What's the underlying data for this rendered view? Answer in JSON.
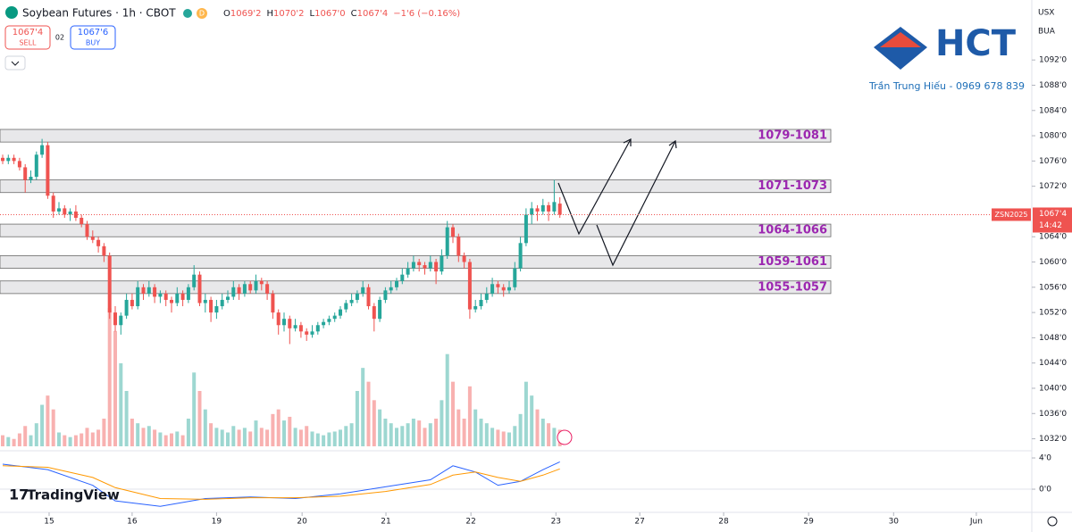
{
  "ui": {
    "symbol": "Soybean Futures · 1h · CBOT",
    "badge": "D",
    "ohlc": [
      {
        "key": "O",
        "value": "1069'2"
      },
      {
        "key": "H",
        "value": "1070'2"
      },
      {
        "key": "L",
        "value": "1067'0"
      },
      {
        "key": "C",
        "value": "1067'4"
      }
    ],
    "change": "−1'6 (−0.16%)",
    "sell": {
      "price": "1067'4",
      "label": "SELL"
    },
    "spread": "02",
    "buy": {
      "price": "1067'6",
      "label": "BUY"
    },
    "currency": "USX",
    "account": "BUA",
    "logo": "HCT",
    "author": "Trần Trung Hiếu - 0969 678 839",
    "brand": "TradingView",
    "ticker": "ZSN2025",
    "countdown": "14:42"
  },
  "chart_data": {
    "type": "candlestick",
    "up_color": "#26a69a",
    "down_color": "#ef5350",
    "grid": false,
    "ylim": [
      1030.1,
      1101.5
    ],
    "yticks": [
      {
        "value": 1032,
        "label": "1032'0"
      },
      {
        "value": 1036,
        "label": "1036'0"
      },
      {
        "value": 1040,
        "label": "1040'0"
      },
      {
        "value": 1044,
        "label": "1044'0"
      },
      {
        "value": 1048,
        "label": "1048'0"
      },
      {
        "value": 1052,
        "label": "1052'0"
      },
      {
        "value": 1056,
        "label": "1056'0"
      },
      {
        "value": 1060,
        "label": "1060'0"
      },
      {
        "value": 1064,
        "label": "1064'0"
      },
      {
        "value": 1072,
        "label": "1072'0"
      },
      {
        "value": 1076,
        "label": "1076'0"
      },
      {
        "value": 1080,
        "label": "1080'0"
      },
      {
        "value": 1084,
        "label": "1084'0"
      },
      {
        "value": 1088,
        "label": "1088'0"
      },
      {
        "value": 1092,
        "label": "1092'0"
      }
    ],
    "xticks": [
      {
        "value": 8.25,
        "label": "15"
      },
      {
        "value": 23,
        "label": "16"
      },
      {
        "value": 38,
        "label": "19"
      },
      {
        "value": 53.2,
        "label": "20"
      },
      {
        "value": 68.1,
        "label": "21"
      },
      {
        "value": 83.2,
        "label": "22"
      },
      {
        "value": 98.3,
        "label": "23"
      },
      {
        "value": 113.2,
        "label": "27"
      },
      {
        "value": 128.1,
        "label": "28"
      },
      {
        "value": 143.2,
        "label": "29"
      },
      {
        "value": 158.3,
        "label": "30"
      },
      {
        "value": 173,
        "label": "Jun"
      }
    ],
    "last_price": {
      "value": 1067.5,
      "label": "1067'4"
    },
    "zones": [
      {
        "low": 1079,
        "high": 1081,
        "label": "1079-1081"
      },
      {
        "low": 1071,
        "high": 1073,
        "label": "1071-1073"
      },
      {
        "low": 1064,
        "high": 1066,
        "label": "1064-1066"
      },
      {
        "low": 1059,
        "high": 1061,
        "label": "1059-1061"
      },
      {
        "low": 1055,
        "high": 1057,
        "label": "1055-1057"
      }
    ],
    "candles": [
      [
        1076.5,
        1077,
        1075.5,
        1076
      ],
      [
        1076,
        1077,
        1075.5,
        1076.5
      ],
      [
        1076.5,
        1077,
        1075.5,
        1076
      ],
      [
        1076,
        1076.5,
        1074.5,
        1075
      ],
      [
        1075,
        1075.5,
        1071,
        1073
      ],
      [
        1073,
        1074.5,
        1072.5,
        1073.5
      ],
      [
        1073.5,
        1077.5,
        1073,
        1077
      ],
      [
        1077,
        1079.5,
        1076.5,
        1078.5
      ],
      [
        1078.5,
        1079,
        1070,
        1070.5
      ],
      [
        1070.5,
        1071,
        1067,
        1068
      ],
      [
        1068,
        1069.5,
        1067.5,
        1068.5
      ],
      [
        1068.5,
        1069,
        1067,
        1067.5
      ],
      [
        1067.5,
        1068.5,
        1066.5,
        1068
      ],
      [
        1068,
        1069,
        1066.5,
        1067
      ],
      [
        1067,
        1067.5,
        1065.5,
        1066
      ],
      [
        1066,
        1066.5,
        1063.5,
        1064
      ],
      [
        1064,
        1065,
        1063,
        1063.5
      ],
      [
        1063.5,
        1064,
        1061.5,
        1062.5
      ],
      [
        1062.5,
        1063,
        1060,
        1061
      ],
      [
        1061,
        1061.5,
        1051,
        1052
      ],
      [
        1052,
        1053,
        1049,
        1050
      ],
      [
        1050,
        1052,
        1048.5,
        1051.5
      ],
      [
        1051.5,
        1055,
        1051,
        1054
      ],
      [
        1054,
        1055,
        1052.5,
        1053
      ],
      [
        1053,
        1057,
        1052.5,
        1056
      ],
      [
        1056,
        1056.5,
        1054,
        1055
      ],
      [
        1055,
        1057,
        1054.5,
        1056
      ],
      [
        1056,
        1056.5,
        1053.5,
        1054.5
      ],
      [
        1054.5,
        1055.5,
        1053.5,
        1055
      ],
      [
        1055,
        1055.5,
        1053,
        1054
      ],
      [
        1054,
        1054.5,
        1052,
        1053.5
      ],
      [
        1053.5,
        1056,
        1053,
        1055
      ],
      [
        1055,
        1055.5,
        1053,
        1054
      ],
      [
        1054,
        1056.5,
        1053.5,
        1056
      ],
      [
        1056,
        1059.5,
        1055.5,
        1058
      ],
      [
        1058,
        1058.5,
        1053,
        1053.5
      ],
      [
        1053.5,
        1055,
        1052,
        1054
      ],
      [
        1054,
        1054.5,
        1050.5,
        1052
      ],
      [
        1052,
        1054,
        1051,
        1053
      ],
      [
        1053,
        1055,
        1052.5,
        1054
      ],
      [
        1054,
        1055.5,
        1053.5,
        1054.5
      ],
      [
        1054.5,
        1057,
        1054,
        1056
      ],
      [
        1056,
        1056.5,
        1054,
        1055
      ],
      [
        1055,
        1057,
        1054.5,
        1056.5
      ],
      [
        1056.5,
        1057,
        1055,
        1055.5
      ],
      [
        1055.5,
        1058,
        1055,
        1057
      ],
      [
        1057,
        1057.5,
        1055.5,
        1056.5
      ],
      [
        1056.5,
        1057,
        1054,
        1055
      ],
      [
        1055,
        1055.5,
        1051,
        1052
      ],
      [
        1052,
        1052.5,
        1048.5,
        1050
      ],
      [
        1050,
        1052,
        1049,
        1051
      ],
      [
        1051,
        1051.5,
        1047,
        1049.5
      ],
      [
        1049.5,
        1051,
        1049,
        1050
      ],
      [
        1050,
        1050.5,
        1048,
        1049
      ],
      [
        1049,
        1049.5,
        1047.5,
        1048.5
      ],
      [
        1048.5,
        1050,
        1048,
        1049
      ],
      [
        1049,
        1050.5,
        1048.5,
        1050
      ],
      [
        1050,
        1051,
        1049.5,
        1050.5
      ],
      [
        1050.5,
        1051.5,
        1050,
        1051
      ],
      [
        1051,
        1052,
        1050.5,
        1051.5
      ],
      [
        1051.5,
        1053,
        1051,
        1052.5
      ],
      [
        1052.5,
        1054,
        1052,
        1053.5
      ],
      [
        1053.5,
        1055,
        1053,
        1054
      ],
      [
        1054,
        1055.5,
        1053.5,
        1055
      ],
      [
        1055,
        1057,
        1054.5,
        1056
      ],
      [
        1056,
        1056.5,
        1052.5,
        1053
      ],
      [
        1053,
        1053.5,
        1049,
        1051
      ],
      [
        1051,
        1054.5,
        1050.5,
        1054
      ],
      [
        1054,
        1056,
        1053.5,
        1055.5
      ],
      [
        1055.5,
        1057,
        1055,
        1056
      ],
      [
        1056,
        1057.5,
        1055.5,
        1057
      ],
      [
        1057,
        1059,
        1056.5,
        1058
      ],
      [
        1058,
        1060,
        1057.5,
        1059
      ],
      [
        1059,
        1061,
        1058.5,
        1060
      ],
      [
        1060,
        1060.5,
        1058.5,
        1059.5
      ],
      [
        1059.5,
        1060,
        1058,
        1059
      ],
      [
        1059,
        1061,
        1058.5,
        1060
      ],
      [
        1060,
        1060.5,
        1056.5,
        1058.5
      ],
      [
        1058.5,
        1062,
        1058,
        1061
      ],
      [
        1061,
        1066.5,
        1060.5,
        1065.5
      ],
      [
        1065.5,
        1066,
        1063,
        1064
      ],
      [
        1064,
        1064.5,
        1060,
        1061
      ],
      [
        1061,
        1061.5,
        1059,
        1060
      ],
      [
        1060,
        1060.5,
        1051,
        1052.5
      ],
      [
        1052.5,
        1054,
        1052,
        1053
      ],
      [
        1053,
        1055,
        1052.5,
        1054
      ],
      [
        1054,
        1056,
        1053.5,
        1055
      ],
      [
        1055,
        1057.5,
        1054.5,
        1056.5
      ],
      [
        1056.5,
        1057,
        1055,
        1056
      ],
      [
        1056,
        1056.5,
        1054.5,
        1055.5
      ],
      [
        1055.5,
        1057,
        1055,
        1056
      ],
      [
        1056,
        1060,
        1055.5,
        1059
      ],
      [
        1059,
        1064,
        1058.5,
        1063
      ],
      [
        1063,
        1068.5,
        1062.5,
        1067.5
      ],
      [
        1067.5,
        1069.5,
        1066,
        1068.5
      ],
      [
        1068.5,
        1069,
        1066.5,
        1068
      ],
      [
        1068,
        1070,
        1067.5,
        1069
      ],
      [
        1069,
        1069.5,
        1066.5,
        1068
      ],
      [
        1068,
        1073,
        1067.5,
        1069.5
      ],
      [
        1069.25,
        1070.25,
        1067,
        1067.5
      ]
    ],
    "volume": [
      12,
      10,
      8,
      14,
      22,
      12,
      25,
      45,
      55,
      40,
      15,
      12,
      10,
      12,
      14,
      20,
      15,
      18,
      30,
      150,
      125,
      90,
      60,
      30,
      25,
      20,
      22,
      18,
      15,
      12,
      14,
      16,
      12,
      30,
      80,
      60,
      40,
      25,
      20,
      18,
      15,
      22,
      18,
      20,
      16,
      28,
      20,
      18,
      35,
      40,
      28,
      32,
      20,
      18,
      22,
      16,
      14,
      12,
      15,
      16,
      18,
      22,
      25,
      60,
      85,
      70,
      50,
      40,
      30,
      25,
      20,
      22,
      25,
      30,
      28,
      20,
      25,
      30,
      50,
      100,
      70,
      40,
      30,
      65,
      40,
      30,
      25,
      20,
      18,
      16,
      15,
      22,
      35,
      70,
      55,
      40,
      30,
      25,
      20,
      18
    ],
    "macd_x": [
      0,
      8,
      16,
      20,
      28,
      36,
      44,
      52,
      60,
      68,
      76,
      80,
      84,
      88,
      92,
      96,
      99
    ],
    "macd": [
      3.2,
      2.5,
      0.5,
      -1.5,
      -2.2,
      -1.2,
      -1.0,
      -1.2,
      -0.6,
      0.3,
      1.2,
      3.0,
      2.2,
      0.5,
      1.0,
      2.5,
      3.5
    ],
    "macd_color": "#2962ff",
    "signal": [
      3.0,
      2.8,
      1.5,
      0.2,
      -1.2,
      -1.3,
      -1.1,
      -1.1,
      -0.9,
      -0.3,
      0.6,
      1.8,
      2.2,
      1.5,
      1.0,
      1.8,
      2.6
    ],
    "signal_color": "#ff9800",
    "y2lim": [
      -2.74,
      4.69
    ],
    "y2ticks": [
      {
        "value": 4,
        "label": "4'0"
      },
      {
        "value": 0,
        "label": "0'0"
      }
    ]
  }
}
